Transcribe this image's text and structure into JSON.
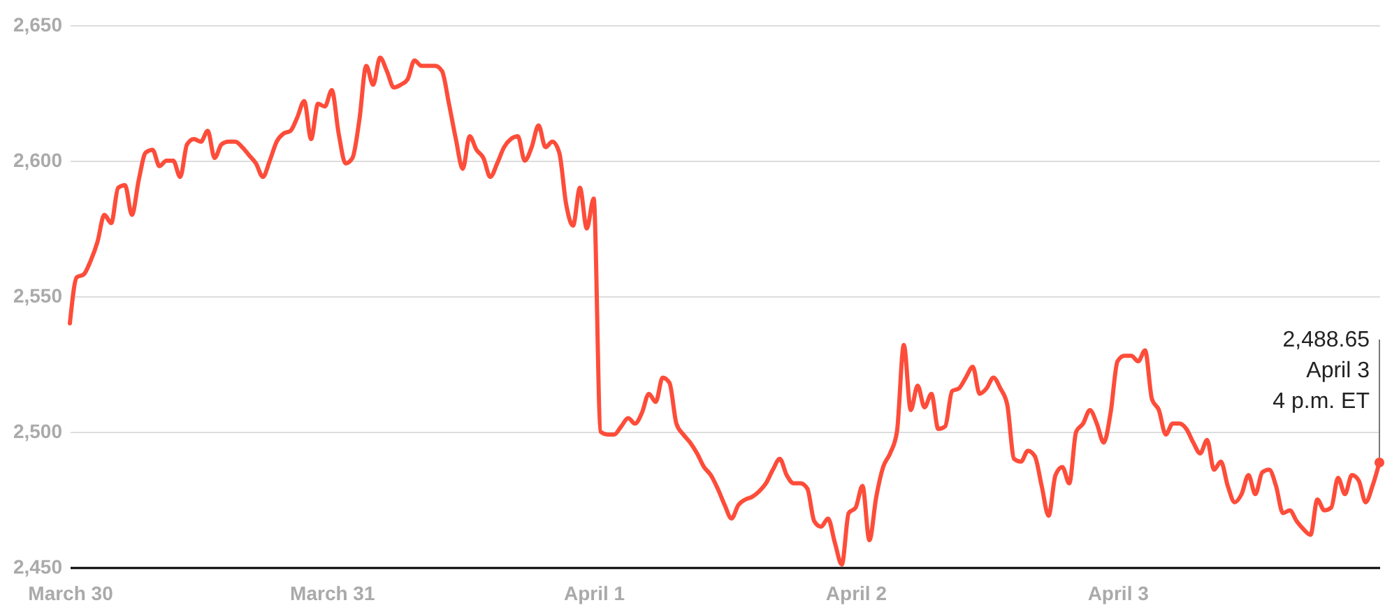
{
  "chart_data": {
    "type": "line",
    "categories": [
      "March 30",
      null,
      null,
      null,
      null,
      null,
      null,
      null,
      null,
      null,
      null,
      null,
      null,
      null,
      null,
      null,
      null,
      null,
      null,
      null,
      null,
      null,
      null,
      null,
      null,
      null,
      null,
      null,
      null,
      null,
      null,
      null,
      null,
      null,
      null,
      null,
      null,
      null,
      "March 31",
      null,
      null,
      null,
      null,
      null,
      null,
      null,
      null,
      null,
      null,
      null,
      null,
      null,
      null,
      null,
      null,
      null,
      null,
      null,
      null,
      null,
      null,
      null,
      null,
      null,
      null,
      null,
      null,
      null,
      null,
      null,
      null,
      null,
      null,
      null,
      null,
      null,
      "April 1",
      null,
      null,
      null,
      null,
      null,
      null,
      null,
      null,
      null,
      null,
      null,
      null,
      null,
      null,
      null,
      null,
      null,
      null,
      null,
      null,
      null,
      null,
      null,
      null,
      null,
      null,
      null,
      null,
      null,
      null,
      null,
      null,
      null,
      null,
      null,
      null,
      null,
      "April 2",
      null,
      null,
      null,
      null,
      null,
      null,
      null,
      null,
      null,
      null,
      null,
      null,
      null,
      null,
      null,
      null,
      null,
      null,
      null,
      null,
      null,
      null,
      null,
      null,
      null,
      null,
      null,
      null,
      null,
      null,
      null,
      null,
      null,
      null,
      null,
      null,
      null,
      "April 3",
      null,
      null,
      null,
      null,
      null,
      null,
      null,
      null,
      null,
      null,
      null,
      null,
      null,
      null,
      null,
      null,
      null,
      null,
      null,
      null,
      null,
      null,
      null,
      null,
      null,
      null,
      null,
      null,
      null,
      null,
      null,
      null,
      null,
      null,
      null,
      null,
      null,
      null
    ],
    "ylim": [
      2450,
      2650
    ],
    "yticks": [
      {
        "value": 2450,
        "label": "2,450"
      },
      {
        "value": 2500,
        "label": "2,500"
      },
      {
        "value": 2550,
        "label": "2,550"
      },
      {
        "value": 2600,
        "label": "2,600"
      },
      {
        "value": 2650,
        "label": "2,650"
      }
    ],
    "grid": "y",
    "series": [
      {
        "color": "#fd4d3a",
        "values": [
          2540,
          2557,
          2558,
          2563,
          2570,
          2580,
          2577,
          2590,
          2591,
          2580,
          2593,
          2603,
          2604,
          2598,
          2600,
          2600,
          2594,
          2606,
          2608,
          2607,
          2611,
          2601,
          2606,
          2607,
          2607,
          2605,
          2602,
          2599,
          2594,
          2600,
          2607,
          2610,
          2611,
          2616,
          2622,
          2608,
          2621,
          2620,
          2626,
          2610,
          2599,
          2601,
          2615,
          2635,
          2628,
          2638,
          2633,
          2627,
          2628,
          2630,
          2637,
          2635,
          2635,
          2635,
          2633,
          2621,
          2608,
          2597,
          2609,
          2604,
          2601,
          2594,
          2599,
          2605,
          2608,
          2609,
          2600,
          2605,
          2613,
          2605,
          2607,
          2603,
          2584,
          2576,
          2590,
          2575,
          2586,
          2500,
          2499,
          2499,
          2502,
          2505,
          2503,
          2507,
          2514,
          2511,
          2520,
          2518,
          2503,
          2499,
          2496,
          2492,
          2487,
          2484,
          2479,
          2473,
          2468,
          2473,
          2475,
          2476,
          2478,
          2481,
          2486,
          2490,
          2484,
          2481,
          2481,
          2479,
          2467,
          2465,
          2468,
          2459,
          2451,
          2470,
          2472,
          2480,
          2460,
          2476,
          2487,
          2492,
          2500,
          2532,
          2508,
          2517,
          2509,
          2514,
          2501,
          2502,
          2515,
          2516,
          2520,
          2524,
          2514,
          2516,
          2520,
          2516,
          2510,
          2490,
          2489,
          2493,
          2491,
          2480,
          2469,
          2484,
          2487,
          2481,
          2500,
          2503,
          2508,
          2503,
          2496,
          2507,
          2526,
          2528,
          2528,
          2526,
          2530,
          2512,
          2508,
          2499,
          2503,
          2503,
          2501,
          2496,
          2492,
          2497,
          2486,
          2489,
          2480,
          2474,
          2477,
          2484,
          2477,
          2485,
          2486,
          2480,
          2470,
          2471,
          2467,
          2464,
          2462,
          2475,
          2471,
          2472,
          2483,
          2477,
          2484,
          2482,
          2474,
          2480,
          2488.65
        ]
      }
    ],
    "annotations": [
      "2,488.65\nApril 3\n4 p.m. ET"
    ]
  }
}
